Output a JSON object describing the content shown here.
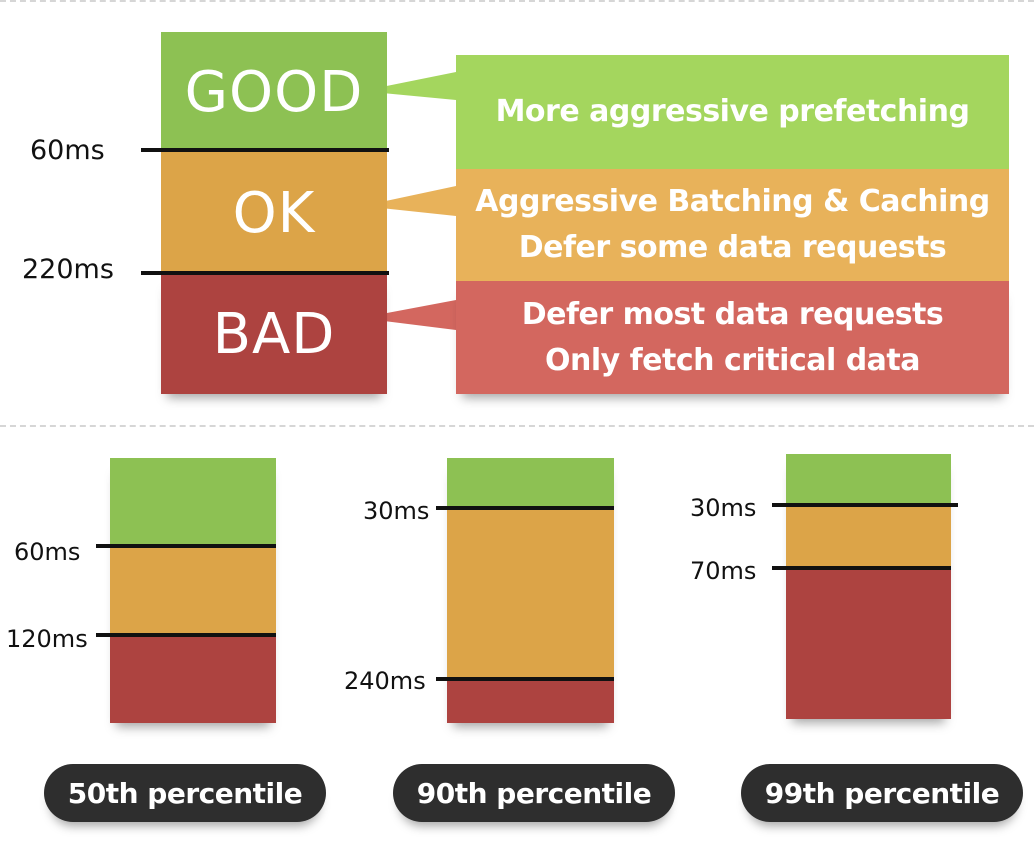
{
  "legend": {
    "tiers": [
      {
        "name": "GOOD",
        "color": "#8dc153",
        "band_color": "#a4d65e",
        "lines": [
          "More aggressive prefetching"
        ]
      },
      {
        "name": "OK",
        "color": "#dca448",
        "band_color": "#e8b25a",
        "lines": [
          "Aggressive Batching & Caching",
          "Defer some data requests"
        ]
      },
      {
        "name": "BAD",
        "color": "#ad4340",
        "band_color": "#d3675f",
        "lines": [
          "Defer most data requests",
          "Only fetch critical data"
        ]
      }
    ],
    "thresholds": [
      "60ms",
      "220ms"
    ]
  },
  "percentiles": [
    {
      "label": "50th percentile",
      "thresholds": [
        "60ms",
        "120ms"
      ]
    },
    {
      "label": "90th percentile",
      "thresholds": [
        "30ms",
        "240ms"
      ]
    },
    {
      "label": "99th percentile",
      "thresholds": [
        "30ms",
        "70ms"
      ]
    }
  ]
}
